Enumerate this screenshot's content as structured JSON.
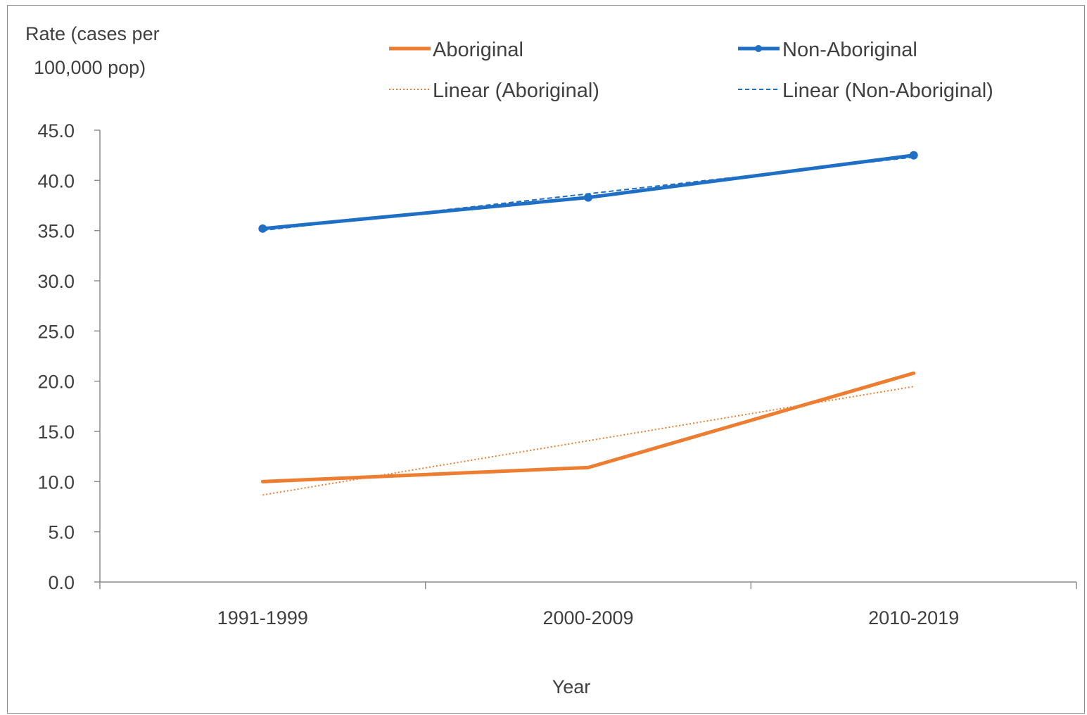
{
  "chart_data": {
    "type": "line",
    "title": "",
    "ylabel_lines": [
      "Rate (cases per",
      "100,000 pop)"
    ],
    "xlabel": "Year",
    "categories": [
      "1991-1999",
      "2000-2009",
      "2010-2019"
    ],
    "ylim": [
      0,
      45
    ],
    "ytick_step": 5,
    "yticks": [
      "0.0",
      "5.0",
      "10.0",
      "15.0",
      "20.0",
      "25.0",
      "30.0",
      "35.0",
      "40.0",
      "45.0"
    ],
    "grid": false,
    "legend_position": "top",
    "series": [
      {
        "name": "Aboriginal",
        "values": [
          10.0,
          11.4,
          20.8
        ],
        "color": "#ed7d31",
        "style": "solid",
        "markers": false
      },
      {
        "name": "Non-Aboriginal",
        "values": [
          35.2,
          38.3,
          42.5
        ],
        "color": "#1f6fc5",
        "style": "solid",
        "markers": true
      }
    ],
    "trendlines": [
      {
        "name": "Linear (Aboriginal)",
        "of": "Aboriginal",
        "color": "#ed7d31",
        "style": "dotted"
      },
      {
        "name": "Linear (Non-Aboriginal)",
        "of": "Non-Aboriginal",
        "color": "#1f6fc5",
        "style": "dashed"
      }
    ]
  }
}
